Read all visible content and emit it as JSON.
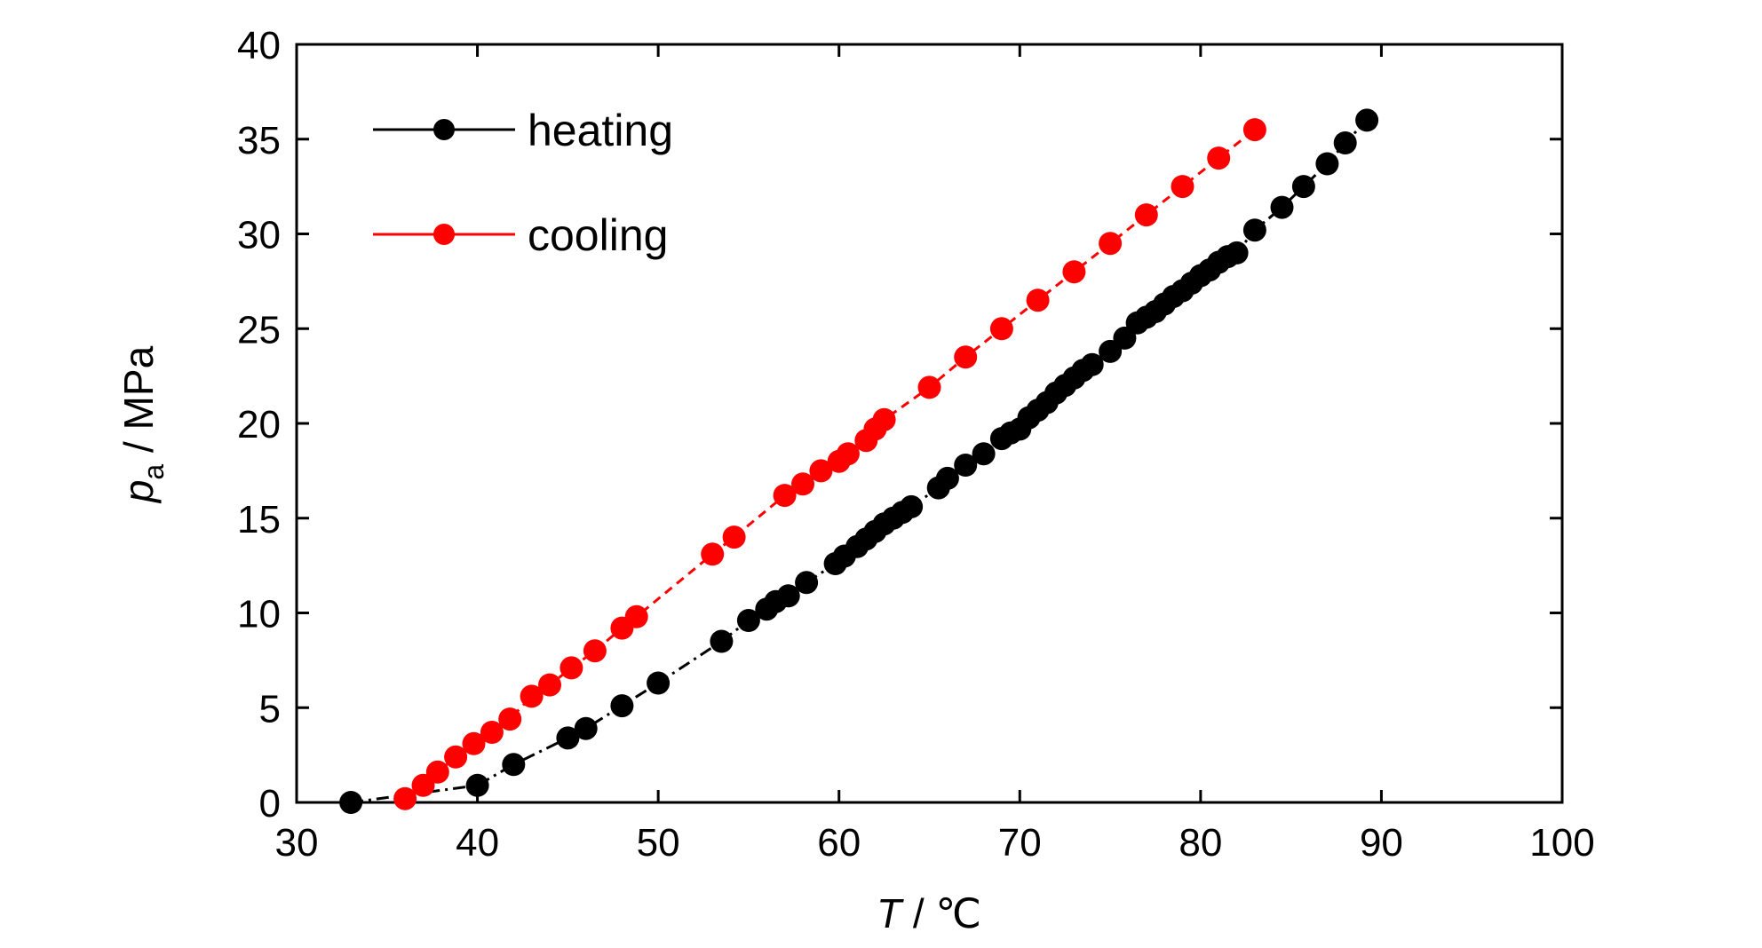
{
  "chart_data": {
    "type": "scatter",
    "xlabel": "T / ℃",
    "xlabel_italic": "T",
    "xlabel_rest": " / ℃",
    "ylabel": "pa / MPa",
    "ylabel_italic": "p",
    "ylabel_sub": "a",
    "ylabel_rest": " / MPa",
    "xlim": [
      30,
      100
    ],
    "ylim": [
      0,
      40
    ],
    "xticks": [
      "30",
      "40",
      "50",
      "60",
      "70",
      "80",
      "90",
      "100"
    ],
    "yticks": [
      "0",
      "5",
      "10",
      "15",
      "20",
      "25",
      "30",
      "35",
      "40"
    ],
    "grid": false,
    "legend_position": "top-left",
    "series": [
      {
        "name": "heating",
        "color": "#000000",
        "line_style": "dash-dot",
        "x": [
          33.0,
          40.0,
          42.0,
          45.0,
          46.0,
          48.0,
          50.0,
          53.5,
          55.0,
          56.0,
          56.5,
          57.2,
          58.2,
          59.8,
          60.3,
          61.0,
          61.5,
          62.0,
          62.5,
          63.0,
          63.5,
          64.0,
          65.5,
          66.0,
          67.0,
          68.0,
          69.0,
          69.5,
          70.0,
          70.5,
          71.0,
          71.5,
          72.0,
          72.5,
          73.0,
          73.5,
          74.0,
          75.0,
          75.8,
          76.5,
          77.0,
          77.5,
          78.0,
          78.5,
          79.0,
          79.5,
          80.0,
          80.5,
          81.0,
          81.5,
          82.0,
          83.0,
          84.5,
          85.7,
          87.0,
          88.0,
          89.2
        ],
        "y": [
          0.0,
          0.9,
          2.0,
          3.4,
          3.9,
          5.1,
          6.3,
          8.5,
          9.6,
          10.2,
          10.6,
          10.9,
          11.6,
          12.6,
          13.0,
          13.5,
          13.9,
          14.3,
          14.7,
          15.0,
          15.3,
          15.6,
          16.6,
          17.1,
          17.8,
          18.4,
          19.2,
          19.5,
          19.7,
          20.3,
          20.7,
          21.1,
          21.6,
          22.0,
          22.4,
          22.8,
          23.1,
          23.8,
          24.5,
          25.3,
          25.6,
          25.9,
          26.3,
          26.7,
          27.0,
          27.4,
          27.8,
          28.1,
          28.5,
          28.8,
          29.0,
          30.2,
          31.4,
          32.5,
          33.7,
          34.8,
          36.0
        ]
      },
      {
        "name": "cooling",
        "color": "#ff0000",
        "line_style": "dashed",
        "x": [
          36.0,
          37.0,
          37.8,
          38.8,
          39.8,
          40.8,
          41.8,
          43.0,
          44.0,
          45.2,
          46.5,
          48.0,
          48.8,
          53.0,
          54.2,
          57.0,
          58.0,
          59.0,
          60.0,
          60.5,
          61.5,
          62.0,
          62.5,
          65.0,
          67.0,
          69.0,
          71.0,
          73.0,
          75.0,
          77.0,
          79.0,
          81.0,
          83.0
        ],
        "y": [
          0.2,
          0.9,
          1.6,
          2.4,
          3.1,
          3.7,
          4.4,
          5.6,
          6.2,
          7.1,
          8.0,
          9.2,
          9.8,
          13.1,
          14.0,
          16.2,
          16.8,
          17.5,
          18.0,
          18.4,
          19.1,
          19.7,
          20.2,
          21.9,
          23.5,
          25.0,
          26.5,
          28.0,
          29.5,
          31.0,
          32.5,
          34.0,
          35.5
        ]
      }
    ]
  }
}
